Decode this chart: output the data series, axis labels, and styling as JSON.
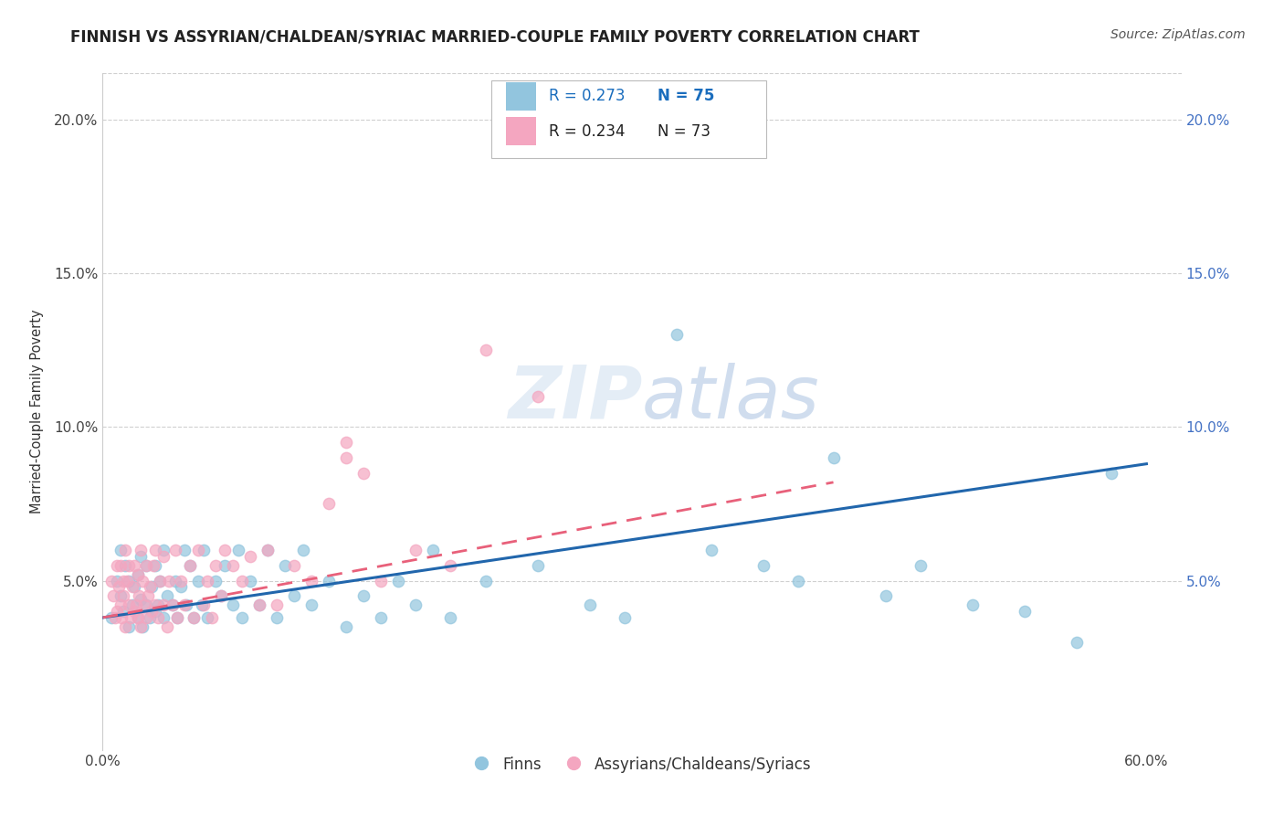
{
  "title": "FINNISH VS ASSYRIAN/CHALDEAN/SYRIAC MARRIED-COUPLE FAMILY POVERTY CORRELATION CHART",
  "source": "Source: ZipAtlas.com",
  "ylabel": "Married-Couple Family Poverty",
  "legend_label_blue": "Finns",
  "legend_label_pink": "Assyrians/Chaldeans/Syriacs",
  "R_blue": 0.273,
  "N_blue": 75,
  "R_pink": 0.234,
  "N_pink": 73,
  "xlim": [
    0.0,
    0.62
  ],
  "ylim": [
    -0.005,
    0.215
  ],
  "yticks": [
    0.05,
    0.1,
    0.15,
    0.2
  ],
  "xticks": [
    0.0,
    0.6
  ],
  "color_blue": "#92c5de",
  "color_pink": "#f4a6c0",
  "color_trendline_blue": "#2166ac",
  "color_trendline_pink": "#e8607a",
  "background_color": "#ffffff",
  "grid_color": "#d0d0d0",
  "title_fontsize": 12,
  "source_fontsize": 10,
  "watermark": "ZIPatlas",
  "blue_x": [
    0.005,
    0.008,
    0.01,
    0.01,
    0.012,
    0.013,
    0.015,
    0.015,
    0.017,
    0.018,
    0.02,
    0.02,
    0.022,
    0.022,
    0.023,
    0.025,
    0.025,
    0.027,
    0.028,
    0.03,
    0.03,
    0.032,
    0.033,
    0.035,
    0.035,
    0.037,
    0.04,
    0.042,
    0.043,
    0.045,
    0.047,
    0.048,
    0.05,
    0.052,
    0.055,
    0.057,
    0.058,
    0.06,
    0.065,
    0.068,
    0.07,
    0.075,
    0.078,
    0.08,
    0.085,
    0.09,
    0.095,
    0.1,
    0.105,
    0.11,
    0.115,
    0.12,
    0.13,
    0.14,
    0.15,
    0.16,
    0.17,
    0.18,
    0.19,
    0.2,
    0.22,
    0.25,
    0.28,
    0.3,
    0.33,
    0.35,
    0.38,
    0.4,
    0.42,
    0.45,
    0.47,
    0.5,
    0.53,
    0.56,
    0.58
  ],
  "blue_y": [
    0.038,
    0.05,
    0.045,
    0.06,
    0.04,
    0.055,
    0.035,
    0.05,
    0.042,
    0.048,
    0.038,
    0.052,
    0.044,
    0.058,
    0.035,
    0.042,
    0.055,
    0.038,
    0.048,
    0.04,
    0.055,
    0.042,
    0.05,
    0.038,
    0.06,
    0.045,
    0.042,
    0.05,
    0.038,
    0.048,
    0.06,
    0.042,
    0.055,
    0.038,
    0.05,
    0.042,
    0.06,
    0.038,
    0.05,
    0.045,
    0.055,
    0.042,
    0.06,
    0.038,
    0.05,
    0.042,
    0.06,
    0.038,
    0.055,
    0.045,
    0.06,
    0.042,
    0.05,
    0.035,
    0.045,
    0.038,
    0.05,
    0.042,
    0.06,
    0.038,
    0.05,
    0.055,
    0.042,
    0.038,
    0.13,
    0.06,
    0.055,
    0.05,
    0.09,
    0.045,
    0.055,
    0.042,
    0.04,
    0.03,
    0.085
  ],
  "pink_x": [
    0.005,
    0.006,
    0.007,
    0.008,
    0.008,
    0.009,
    0.01,
    0.01,
    0.011,
    0.012,
    0.012,
    0.013,
    0.013,
    0.014,
    0.015,
    0.015,
    0.016,
    0.017,
    0.018,
    0.018,
    0.019,
    0.02,
    0.02,
    0.021,
    0.022,
    0.022,
    0.023,
    0.024,
    0.025,
    0.025,
    0.026,
    0.027,
    0.028,
    0.029,
    0.03,
    0.03,
    0.032,
    0.033,
    0.035,
    0.035,
    0.037,
    0.038,
    0.04,
    0.042,
    0.043,
    0.045,
    0.047,
    0.05,
    0.052,
    0.055,
    0.058,
    0.06,
    0.063,
    0.065,
    0.068,
    0.07,
    0.075,
    0.08,
    0.085,
    0.09,
    0.095,
    0.1,
    0.11,
    0.12,
    0.13,
    0.14,
    0.15,
    0.16,
    0.18,
    0.2,
    0.22,
    0.25,
    0.14
  ],
  "pink_y": [
    0.05,
    0.045,
    0.038,
    0.055,
    0.04,
    0.048,
    0.042,
    0.055,
    0.038,
    0.05,
    0.045,
    0.06,
    0.035,
    0.05,
    0.042,
    0.055,
    0.038,
    0.048,
    0.04,
    0.055,
    0.042,
    0.038,
    0.052,
    0.045,
    0.06,
    0.035,
    0.05,
    0.042,
    0.038,
    0.055,
    0.045,
    0.048,
    0.04,
    0.055,
    0.042,
    0.06,
    0.038,
    0.05,
    0.042,
    0.058,
    0.035,
    0.05,
    0.042,
    0.06,
    0.038,
    0.05,
    0.042,
    0.055,
    0.038,
    0.06,
    0.042,
    0.05,
    0.038,
    0.055,
    0.045,
    0.06,
    0.055,
    0.05,
    0.058,
    0.042,
    0.06,
    0.042,
    0.055,
    0.05,
    0.075,
    0.09,
    0.085,
    0.05,
    0.06,
    0.055,
    0.125,
    0.11,
    0.095
  ],
  "blue_trendline_x0": 0.0,
  "blue_trendline_y0": 0.038,
  "blue_trendline_x1": 0.6,
  "blue_trendline_y1": 0.088,
  "pink_trendline_x0": 0.0,
  "pink_trendline_y0": 0.038,
  "pink_trendline_x1": 0.42,
  "pink_trendline_y1": 0.082
}
